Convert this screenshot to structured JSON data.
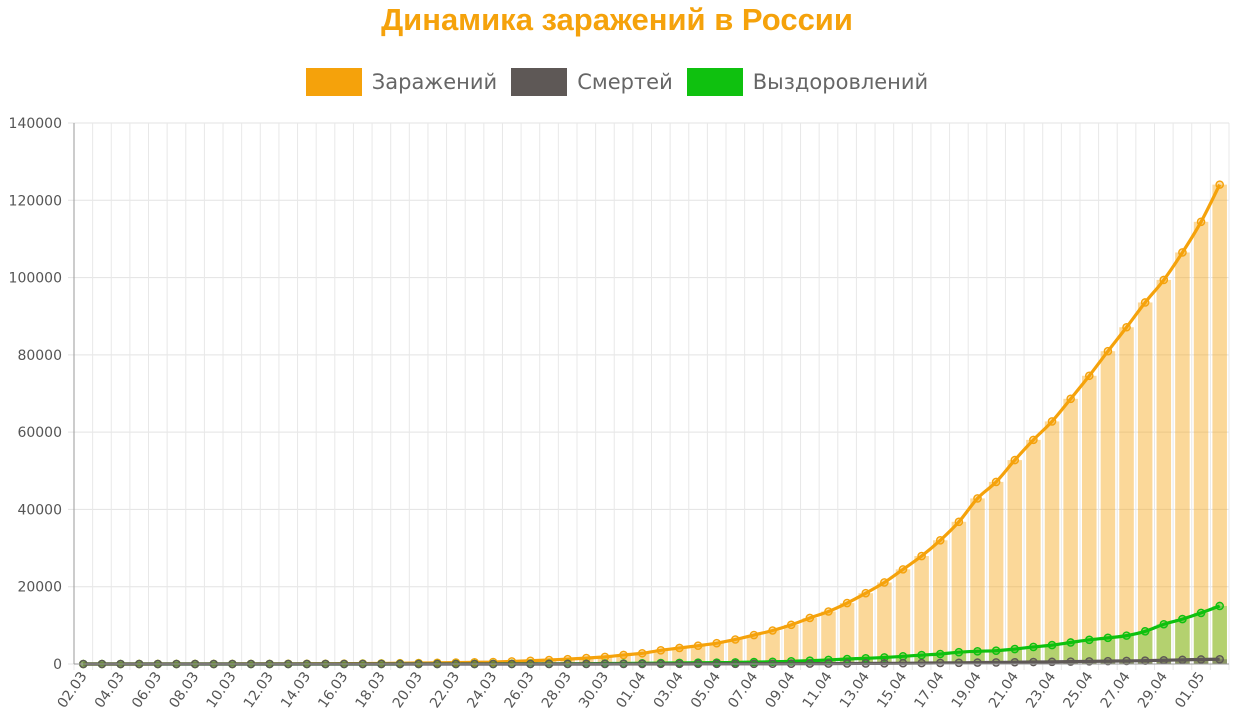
{
  "chart_data": {
    "type": "bar",
    "title": "Динамика заражений в России",
    "colors": {
      "title": "#f5a20b",
      "infected": "#f5a20b",
      "deaths": "#5e5856",
      "recovered": "#0fc10f"
    },
    "xlabel": "",
    "ylabel": "",
    "ylim": [
      0,
      140000
    ],
    "yticks": [
      "0",
      "20000",
      "40000",
      "60000",
      "80000",
      "100000",
      "120000",
      "140000"
    ],
    "grid": true,
    "legend_position": "top",
    "x_tick_labels": [
      "02.03",
      "04.03",
      "06.03",
      "08.03",
      "10.03",
      "12.03",
      "14.03",
      "16.03",
      "18.03",
      "20.03",
      "22.03",
      "24.03",
      "26.03",
      "28.03",
      "30.03",
      "01.04",
      "03.04",
      "05.04",
      "07.04",
      "09.04",
      "11.04",
      "13.04",
      "15.04",
      "17.04",
      "19.04",
      "21.04",
      "23.04",
      "25.04",
      "27.04",
      "29.04",
      "01.05"
    ],
    "categories": [
      "02.03",
      "03.03",
      "04.03",
      "05.03",
      "06.03",
      "07.03",
      "08.03",
      "09.03",
      "10.03",
      "11.03",
      "12.03",
      "13.03",
      "14.03",
      "15.03",
      "16.03",
      "17.03",
      "18.03",
      "19.03",
      "20.03",
      "21.03",
      "22.03",
      "23.03",
      "24.03",
      "25.03",
      "26.03",
      "27.03",
      "28.03",
      "29.03",
      "30.03",
      "31.03",
      "01.04",
      "02.04",
      "03.04",
      "04.04",
      "05.04",
      "06.04",
      "07.04",
      "08.04",
      "09.04",
      "10.04",
      "11.04",
      "12.04",
      "13.04",
      "14.04",
      "15.04",
      "16.04",
      "17.04",
      "18.04",
      "19.04",
      "20.04",
      "21.04",
      "22.04",
      "23.04",
      "24.04",
      "25.04",
      "26.04",
      "27.04",
      "28.04",
      "29.04",
      "30.04",
      "01.05",
      "02.05"
    ],
    "series": [
      {
        "name": "Заражений",
        "values": [
          3,
          3,
          3,
          4,
          10,
          14,
          17,
          17,
          20,
          28,
          34,
          45,
          59,
          63,
          93,
          114,
          147,
          199,
          253,
          306,
          367,
          438,
          495,
          658,
          840,
          1036,
          1264,
          1534,
          1836,
          2337,
          2777,
          3548,
          4149,
          4731,
          5389,
          6343,
          7497,
          8672,
          10131,
          11917,
          13584,
          15770,
          18328,
          21102,
          24490,
          27938,
          32008,
          36793,
          42853,
          47121,
          52763,
          57999,
          62773,
          68622,
          74588,
          80949,
          87147,
          93558,
          99399,
          106498,
          114431,
          124054
        ]
      },
      {
        "name": "Смертей",
        "values": [
          0,
          0,
          0,
          0,
          0,
          0,
          0,
          0,
          0,
          0,
          0,
          0,
          0,
          0,
          0,
          0,
          0,
          1,
          1,
          1,
          1,
          1,
          1,
          2,
          3,
          4,
          4,
          8,
          9,
          17,
          24,
          30,
          34,
          43,
          45,
          47,
          58,
          63,
          76,
          94,
          106,
          130,
          148,
          170,
          198,
          232,
          273,
          313,
          361,
          405,
          456,
          513,
          555,
          615,
          681,
          747,
          794,
          867,
          972,
          1073,
          1169,
          1222
        ]
      },
      {
        "name": "Выздоровлений",
        "values": [
          0,
          0,
          0,
          0,
          0,
          0,
          0,
          0,
          0,
          0,
          0,
          0,
          0,
          0,
          0,
          5,
          8,
          9,
          12,
          16,
          16,
          21,
          22,
          29,
          38,
          45,
          64,
          66,
          121,
          121,
          190,
          235,
          281,
          333,
          355,
          406,
          494,
          580,
          698,
          850,
          1045,
          1291,
          1470,
          1694,
          1986,
          2304,
          2590,
          3057,
          3291,
          3446,
          3873,
          4420,
          4891,
          5568,
          6250,
          6767,
          7346,
          8456,
          10286,
          11619,
          13220,
          15013
        ]
      }
    ]
  }
}
